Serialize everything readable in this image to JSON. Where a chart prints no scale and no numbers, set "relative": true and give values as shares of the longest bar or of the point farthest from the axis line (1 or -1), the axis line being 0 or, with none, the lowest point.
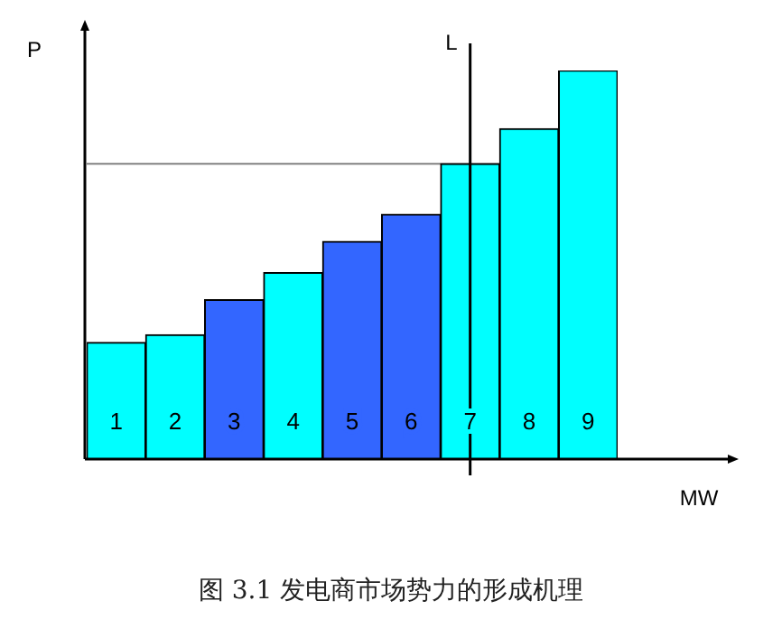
{
  "chart_data": {
    "type": "bar",
    "xlabel": "MW",
    "ylabel": "P",
    "relative": true,
    "categories": [
      "1",
      "2",
      "3",
      "4",
      "5",
      "6",
      "7",
      "8",
      "9"
    ],
    "values": [
      0.3,
      0.32,
      0.41,
      0.48,
      0.56,
      0.63,
      0.76,
      0.85,
      1
    ],
    "colors": [
      "#00ffff",
      "#00ffff",
      "#3366ff",
      "#00ffff",
      "#3366ff",
      "#3366ff",
      "#00ffff",
      "#00ffff",
      "#00ffff"
    ],
    "ref_lines": [
      {
        "axis": "x",
        "value": "7",
        "label": "L",
        "color": "#000000"
      },
      {
        "axis": "y",
        "value": 0.76,
        "color": "#808080"
      }
    ],
    "annotations": [
      "图 3.1  发电商市场势力的形成机理"
    ],
    "grid": false,
    "legend": false
  }
}
